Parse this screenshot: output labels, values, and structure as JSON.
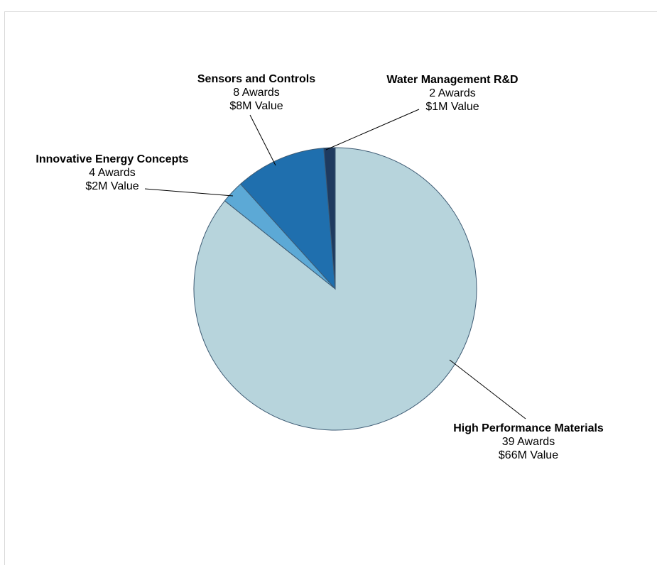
{
  "chart_data": {
    "type": "pie",
    "title": "",
    "slices": [
      {
        "name": "High Performance Materials",
        "awards": 39,
        "value": 66,
        "awards_label": "39 Awards",
        "value_label": "$66M Value",
        "color": "#b7d4dc"
      },
      {
        "name": "Innovative Energy Concepts",
        "awards": 4,
        "value": 2,
        "awards_label": "4 Awards",
        "value_label": "$2M Value",
        "color": "#5ca9d6"
      },
      {
        "name": "Sensors and Controls",
        "awards": 8,
        "value": 8,
        "awards_label": "8 Awards",
        "value_label": "$8M Value",
        "color": "#1f6fae"
      },
      {
        "name": "Water Management R&D",
        "awards": 2,
        "value": 1,
        "awards_label": "2 Awards",
        "value_label": "$1M Value",
        "color": "#1e3a5f"
      }
    ]
  }
}
